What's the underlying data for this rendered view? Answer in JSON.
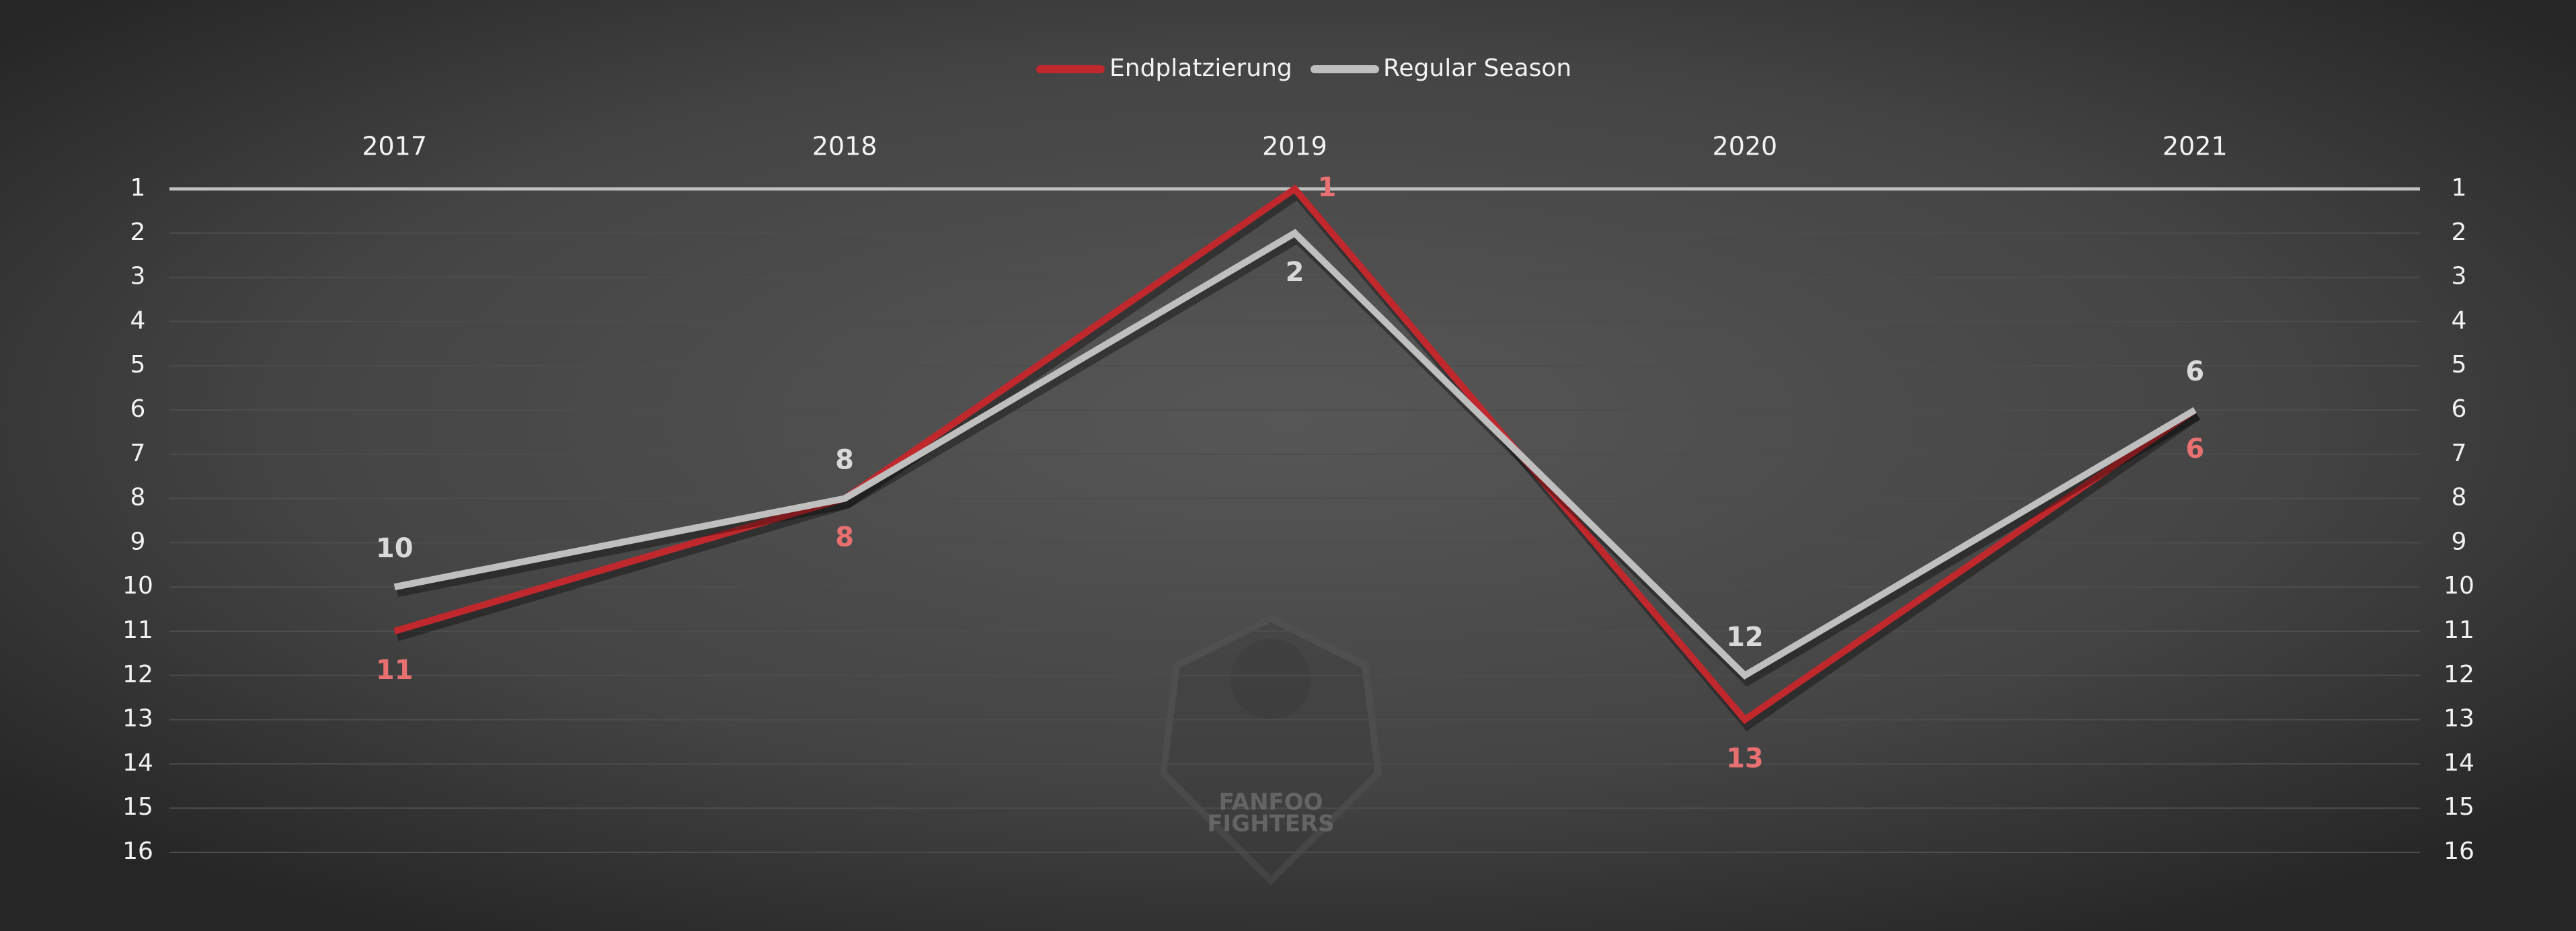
{
  "chart_data": {
    "type": "line",
    "categories": [
      "2017",
      "2018",
      "2019",
      "2020",
      "2021"
    ],
    "series": [
      {
        "name": "Endplatzierung",
        "color": "#c0282d",
        "label_color": "#e87070",
        "values": [
          11,
          8,
          1,
          13,
          6
        ]
      },
      {
        "name": "Regular Season",
        "color": "#bfbfbf",
        "label_color": "#d9d9d9",
        "values": [
          10,
          8,
          2,
          12,
          6
        ]
      }
    ],
    "ylim": [
      1,
      16
    ],
    "yticks": [
      1,
      2,
      3,
      4,
      5,
      6,
      7,
      8,
      9,
      10,
      11,
      12,
      13,
      14,
      15,
      16
    ],
    "y2lim": [
      1,
      16
    ],
    "y2ticks": [
      1,
      2,
      3,
      4,
      5,
      6,
      7,
      8,
      9,
      10,
      11,
      12,
      13,
      14,
      15,
      16
    ],
    "y_reversed": true,
    "grid": true,
    "legend": "top",
    "watermark": [
      "FANFOO",
      "FIGHTERS"
    ]
  }
}
